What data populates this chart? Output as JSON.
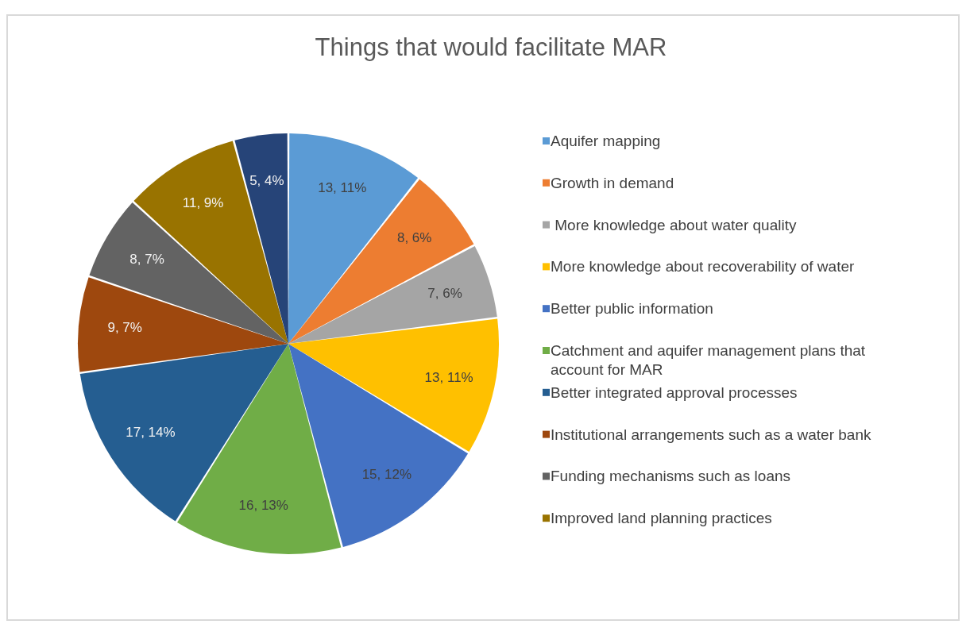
{
  "chart_data": {
    "type": "pie",
    "title": "Things that would facilitate MAR",
    "categories": [
      "Aquifer mapping",
      "Growth in demand",
      " More knowledge about water quality",
      "More knowledge about recoverability of water",
      "Better public information",
      "Catchment and aquifer management plans that account for MAR",
      "Better integrated approval processes",
      "Institutional arrangements such as a water bank",
      "Funding mechanisms such as loans",
      "Improved land planning practices",
      null
    ],
    "values": [
      13,
      8,
      7,
      13,
      15,
      16,
      17,
      9,
      8,
      11,
      5
    ],
    "colors": [
      "#5b9bd5",
      "#ed7d31",
      "#a5a5a5",
      "#ffc000",
      "#4472c4",
      "#70ad47",
      "#255e91",
      "#9e480e",
      "#636363",
      "#997300",
      "#264478"
    ],
    "value_labels": [
      "13, 11%",
      "8, 6%",
      "7, 6%",
      "13, 11%",
      "15, 12%",
      "16, 13%",
      "17, 14%",
      "9, 7%",
      "8, 7%",
      "11, 9%",
      "5, 4%"
    ],
    "legend": "right"
  }
}
